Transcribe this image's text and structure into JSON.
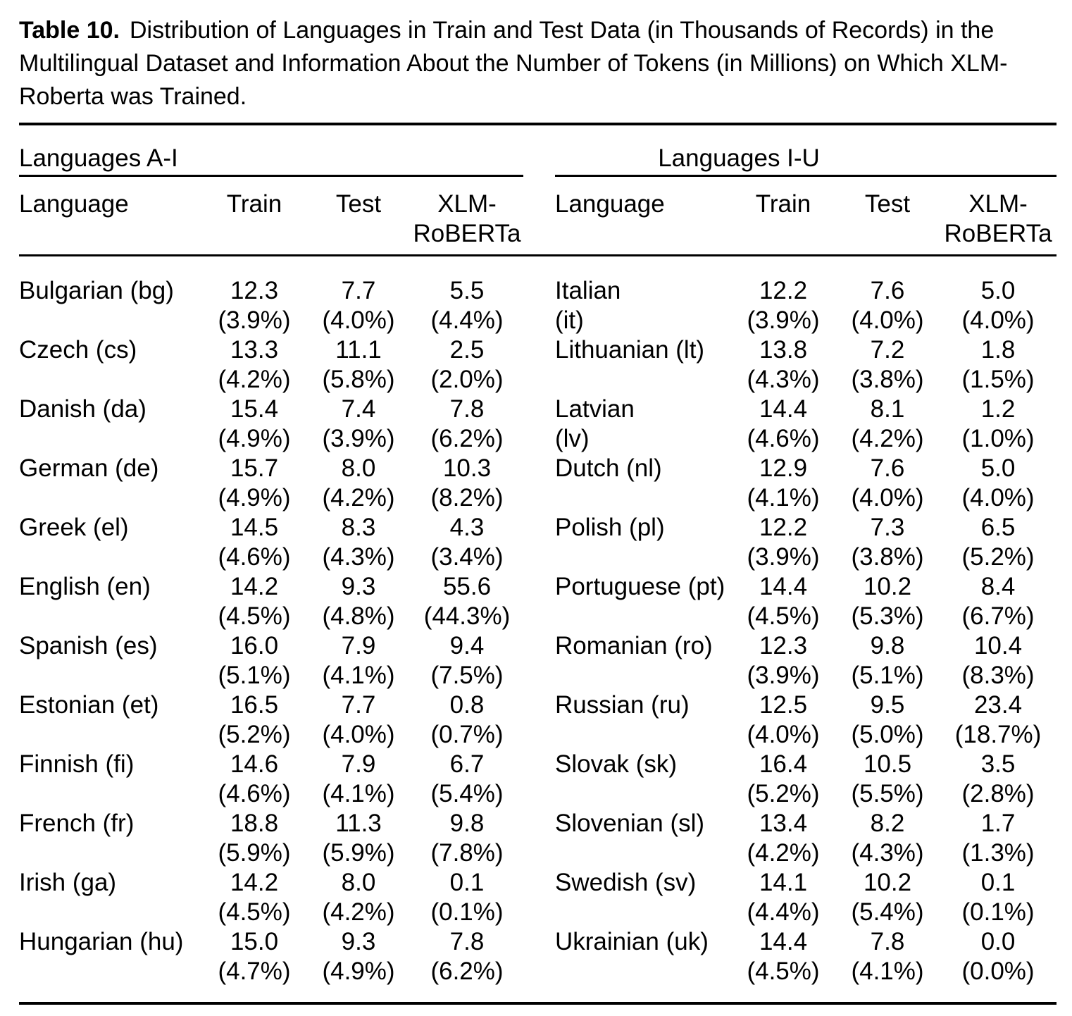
{
  "caption": {
    "label": "Table 10.",
    "text": "Distribution of Languages in Train and Test Data (in Thousands of Records) in the Multilingual Dataset and Information About the Number of Tokens (in Millions) on Which XLM-Roberta was Trained."
  },
  "panels": [
    {
      "span_label": "Languages A-I",
      "headers": [
        "Language",
        "Train",
        "Test",
        "XLM-RoBERTa"
      ],
      "rows": [
        {
          "language": [
            "Bulgarian (bg)"
          ],
          "train": [
            "12.3",
            "(3.9%)"
          ],
          "test": [
            "7.7",
            "(4.0%)"
          ],
          "xlm_roberta": [
            "5.5",
            "(4.4%)"
          ]
        },
        {
          "language": [
            "Czech (cs)"
          ],
          "train": [
            "13.3",
            "(4.2%)"
          ],
          "test": [
            "11.1",
            "(5.8%)"
          ],
          "xlm_roberta": [
            "2.5",
            "(2.0%)"
          ]
        },
        {
          "language": [
            "Danish (da)"
          ],
          "train": [
            "15.4",
            "(4.9%)"
          ],
          "test": [
            "7.4",
            "(3.9%)"
          ],
          "xlm_roberta": [
            "7.8",
            "(6.2%)"
          ]
        },
        {
          "language": [
            "German (de)"
          ],
          "train": [
            "15.7",
            "(4.9%)"
          ],
          "test": [
            "8.0",
            "(4.2%)"
          ],
          "xlm_roberta": [
            "10.3",
            "(8.2%)"
          ]
        },
        {
          "language": [
            "Greek (el)"
          ],
          "train": [
            "14.5",
            "(4.6%)"
          ],
          "test": [
            "8.3",
            "(4.3%)"
          ],
          "xlm_roberta": [
            "4.3",
            "(3.4%)"
          ]
        },
        {
          "language": [
            "English (en)"
          ],
          "train": [
            "14.2",
            "(4.5%)"
          ],
          "test": [
            "9.3",
            "(4.8%)"
          ],
          "xlm_roberta": [
            "55.6",
            "(44.3%)"
          ]
        },
        {
          "language": [
            "Spanish (es)"
          ],
          "train": [
            "16.0",
            "(5.1%)"
          ],
          "test": [
            "7.9",
            "(4.1%)"
          ],
          "xlm_roberta": [
            "9.4",
            "(7.5%)"
          ]
        },
        {
          "language": [
            "Estonian (et)"
          ],
          "train": [
            "16.5",
            "(5.2%)"
          ],
          "test": [
            "7.7",
            "(4.0%)"
          ],
          "xlm_roberta": [
            "0.8",
            "(0.7%)"
          ]
        },
        {
          "language": [
            "Finnish (fi)"
          ],
          "train": [
            "14.6",
            "(4.6%)"
          ],
          "test": [
            "7.9",
            "(4.1%)"
          ],
          "xlm_roberta": [
            "6.7",
            "(5.4%)"
          ]
        },
        {
          "language": [
            "French (fr)"
          ],
          "train": [
            "18.8",
            "(5.9%)"
          ],
          "test": [
            "11.3",
            "(5.9%)"
          ],
          "xlm_roberta": [
            "9.8",
            "(7.8%)"
          ]
        },
        {
          "language": [
            "Irish (ga)"
          ],
          "train": [
            "14.2",
            "(4.5%)"
          ],
          "test": [
            "8.0",
            "(4.2%)"
          ],
          "xlm_roberta": [
            "0.1",
            "(0.1%)"
          ]
        },
        {
          "language": [
            "Hungarian (hu)"
          ],
          "train": [
            "15.0",
            "(4.7%)"
          ],
          "test": [
            "9.3",
            "(4.9%)"
          ],
          "xlm_roberta": [
            "7.8",
            "(6.2%)"
          ]
        }
      ]
    },
    {
      "span_label": "Languages I-U",
      "headers": [
        "Language",
        "Train",
        "Test",
        "XLM-RoBERTa"
      ],
      "rows": [
        {
          "language": [
            "Italian",
            "(it)"
          ],
          "train": [
            "12.2",
            "(3.9%)"
          ],
          "test": [
            "7.6",
            "(4.0%)"
          ],
          "xlm_roberta": [
            "5.0",
            "(4.0%)"
          ]
        },
        {
          "language": [
            "Lithuanian (lt)"
          ],
          "train": [
            "13.8",
            "(4.3%)"
          ],
          "test": [
            "7.2",
            "(3.8%)"
          ],
          "xlm_roberta": [
            "1.8",
            "(1.5%)"
          ]
        },
        {
          "language": [
            "Latvian",
            "(lv)"
          ],
          "train": [
            "14.4",
            "(4.6%)"
          ],
          "test": [
            "8.1",
            "(4.2%)"
          ],
          "xlm_roberta": [
            "1.2",
            "(1.0%)"
          ]
        },
        {
          "language": [
            "Dutch (nl)"
          ],
          "train": [
            "12.9",
            "(4.1%)"
          ],
          "test": [
            "7.6",
            "(4.0%)"
          ],
          "xlm_roberta": [
            "5.0",
            "(4.0%)"
          ]
        },
        {
          "language": [
            "Polish (pl)"
          ],
          "train": [
            "12.2",
            "(3.9%)"
          ],
          "test": [
            "7.3",
            "(3.8%)"
          ],
          "xlm_roberta": [
            "6.5",
            "(5.2%)"
          ]
        },
        {
          "language": [
            "Portuguese (pt)"
          ],
          "train": [
            "14.4",
            "(4.5%)"
          ],
          "test": [
            "10.2",
            "(5.3%)"
          ],
          "xlm_roberta": [
            "8.4",
            "(6.7%)"
          ]
        },
        {
          "language": [
            "Romanian (ro)"
          ],
          "train": [
            "12.3",
            "(3.9%)"
          ],
          "test": [
            "9.8",
            "(5.1%)"
          ],
          "xlm_roberta": [
            "10.4",
            "(8.3%)"
          ]
        },
        {
          "language": [
            "Russian (ru)"
          ],
          "train": [
            "12.5",
            "(4.0%)"
          ],
          "test": [
            "9.5",
            "(5.0%)"
          ],
          "xlm_roberta": [
            "23.4",
            "(18.7%)"
          ]
        },
        {
          "language": [
            "Slovak (sk)"
          ],
          "train": [
            "16.4",
            "(5.2%)"
          ],
          "test": [
            "10.5",
            "(5.5%)"
          ],
          "xlm_roberta": [
            "3.5",
            "(2.8%)"
          ]
        },
        {
          "language": [
            "Slovenian (sl)"
          ],
          "train": [
            "13.4",
            "(4.2%)"
          ],
          "test": [
            "8.2",
            "(4.3%)"
          ],
          "xlm_roberta": [
            "1.7",
            "(1.3%)"
          ]
        },
        {
          "language": [
            "Swedish (sv)"
          ],
          "train": [
            "14.1",
            "(4.4%)"
          ],
          "test": [
            "10.2",
            "(5.4%)"
          ],
          "xlm_roberta": [
            "0.1",
            "(0.1%)"
          ]
        },
        {
          "language": [
            "Ukrainian (uk)"
          ],
          "train": [
            "14.4",
            "(4.5%)"
          ],
          "test": [
            "7.8",
            "(4.1%)"
          ],
          "xlm_roberta": [
            "0.0",
            "(0.0%)"
          ]
        }
      ]
    }
  ]
}
